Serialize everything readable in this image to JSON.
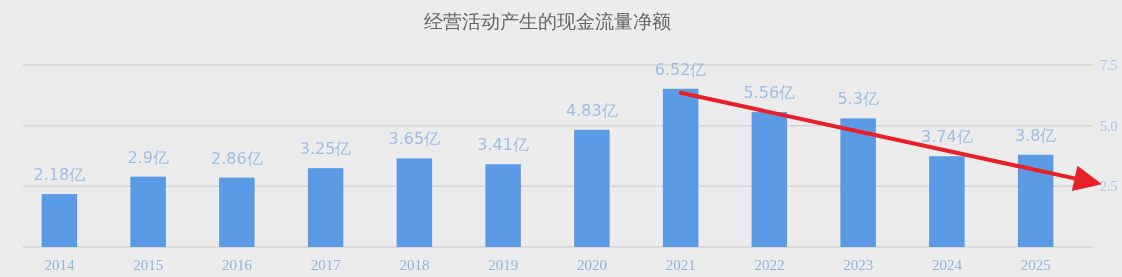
{
  "chart_data": {
    "type": "bar",
    "title": "经营活动产生的现金流量净额",
    "categories": [
      "2014",
      "2015",
      "2016",
      "2017",
      "2018",
      "2019",
      "2020",
      "2021",
      "2022",
      "2023",
      "2024",
      "2025"
    ],
    "values": [
      2.18,
      2.9,
      2.86,
      3.25,
      3.65,
      3.41,
      4.83,
      6.52,
      5.56,
      5.3,
      3.74,
      3.8
    ],
    "value_labels": [
      "2.18亿",
      "2.9亿",
      "2.86亿",
      "3.25亿",
      "3.65亿",
      "3.41亿",
      "4.83亿",
      "6.52亿",
      "5.56亿",
      "5.3亿",
      "3.74亿",
      "3.8亿"
    ],
    "color": "#5b9be6",
    "ylim": [
      0,
      7.5
    ],
    "yticks": [
      {
        "value": 2.5,
        "label": "2.5"
      },
      {
        "value": 5,
        "label": "5.0"
      },
      {
        "value": 7.5,
        "label": "7.5"
      }
    ],
    "grid": "y"
  }
}
